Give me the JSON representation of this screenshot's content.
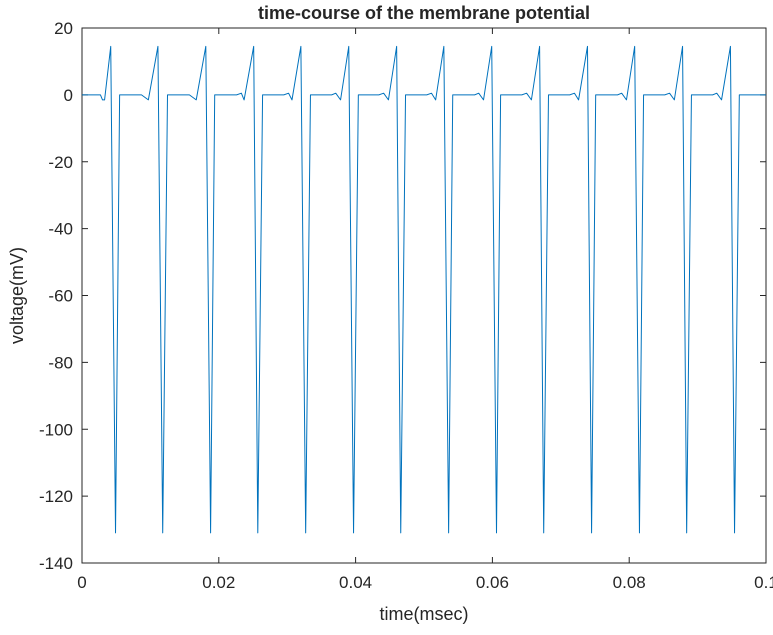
{
  "chart_data": {
    "type": "line",
    "title": "time-course of the membrane potential",
    "xlabel": "time(msec)",
    "ylabel": "voltage(mV)",
    "xlim": [
      0,
      0.1
    ],
    "ylim": [
      -140,
      20
    ],
    "xticks": [
      0,
      0.02,
      0.04,
      0.06,
      0.08,
      0.1
    ],
    "xtick_labels": [
      "0",
      "0.02",
      "0.04",
      "0.06",
      "0.08",
      "0.1"
    ],
    "yticks": [
      -140,
      -120,
      -100,
      -80,
      -60,
      -40,
      -20,
      0,
      20
    ],
    "ytick_labels": [
      "-140",
      "-120",
      "-100",
      "-80",
      "-60",
      "-40",
      "-20",
      "0",
      "20"
    ],
    "grid": false,
    "series": [
      {
        "color": "#0072BD",
        "x": [
          0,
          0.0027,
          0.003,
          0.0033,
          0.0042,
          0.0049,
          0.0055,
          0.0087,
          0.0097,
          0.0111,
          0.0118,
          0.0125,
          0.0157,
          0.0167,
          0.0181,
          0.0188,
          0.0194,
          0.0226,
          0.0233,
          0.0237,
          0.0251,
          0.0257,
          0.0264,
          0.0295,
          0.0302,
          0.0307,
          0.032,
          0.0327,
          0.0334,
          0.0365,
          0.0371,
          0.0378,
          0.039,
          0.0397,
          0.0404,
          0.0434,
          0.0441,
          0.0448,
          0.046,
          0.0466,
          0.0473,
          0.0504,
          0.0511,
          0.0517,
          0.0529,
          0.0536,
          0.0542,
          0.0574,
          0.058,
          0.0587,
          0.0599,
          0.0606,
          0.0612,
          0.0643,
          0.065,
          0.0657,
          0.0669,
          0.0675,
          0.0682,
          0.0713,
          0.072,
          0.0726,
          0.0739,
          0.0745,
          0.0751,
          0.0783,
          0.0789,
          0.0796,
          0.0808,
          0.0815,
          0.0821,
          0.0852,
          0.0859,
          0.0866,
          0.0878,
          0.0884,
          0.0891,
          0.0922,
          0.0928,
          0.0935,
          0.0948,
          0.0954,
          0.0961,
          0.1
        ],
        "y": [
          0,
          0,
          -1.5,
          -1.5,
          14.5,
          -131,
          0,
          0,
          -1.5,
          14.5,
          -131,
          0,
          0,
          -1.5,
          14.5,
          -131,
          0,
          0,
          0.5,
          -1.5,
          14.5,
          -131,
          0,
          0,
          0.5,
          -1.5,
          14.5,
          -131,
          0,
          0,
          0.5,
          -1.5,
          14.5,
          -131,
          0,
          0,
          0.5,
          -1.5,
          14.5,
          -131,
          0,
          0,
          0.5,
          -1.5,
          14.5,
          -131,
          0,
          0,
          0.5,
          -1.5,
          14.5,
          -131,
          0,
          0,
          0.5,
          -1.5,
          14.5,
          -131,
          0,
          0,
          0.5,
          -1.5,
          14.5,
          -131,
          0,
          0,
          0.5,
          -1.5,
          14.5,
          -131,
          0,
          0,
          0.5,
          -1.5,
          14.5,
          -131,
          0,
          0,
          0.5,
          -1.5,
          14.5,
          -131,
          0,
          0
        ]
      }
    ]
  }
}
